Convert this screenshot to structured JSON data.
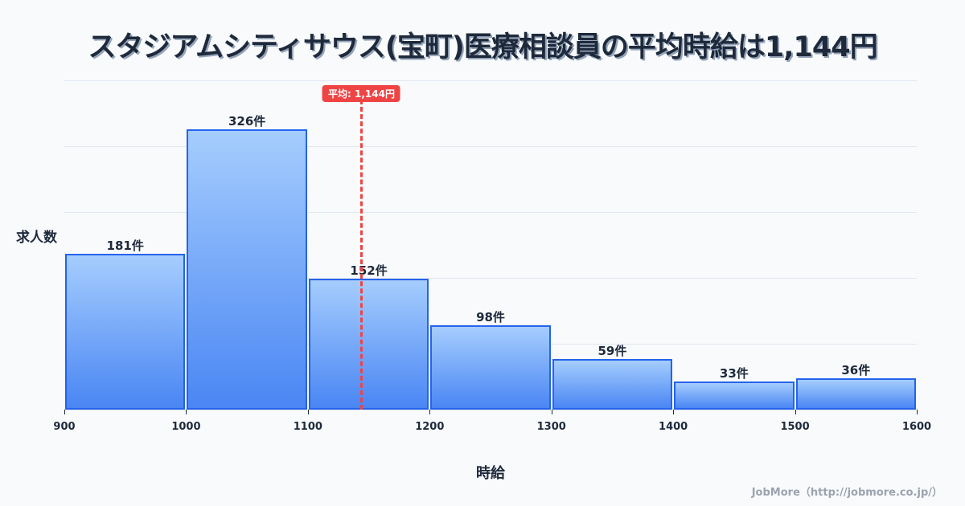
{
  "title": "スタジアムシティサウス(宝町)医療相談員の平均時給は1,144円",
  "mean_badge": "平均: 1,144円",
  "ylabel": "求人数",
  "xlabel": "時給",
  "credit": "JobMore（http://jobmore.co.jp/）",
  "colors": {
    "bar_border": "#2563eb",
    "bar_top": "#a5cdfd",
    "bar_bottom": "#4a86f4",
    "mean_line": "#ef4444",
    "text": "#1e293b"
  },
  "chart_data": {
    "type": "bar",
    "title": "スタジアムシティサウス(宝町)医療相談員の平均時給は1,144円",
    "xlabel": "時給",
    "ylabel": "求人数",
    "categories": [
      "900-1000",
      "1000-1100",
      "1100-1200",
      "1200-1300",
      "1300-1400",
      "1400-1500",
      "1500-1600"
    ],
    "bin_edges": [
      900,
      1000,
      1100,
      1200,
      1300,
      1400,
      1500,
      1600
    ],
    "values": [
      181,
      326,
      152,
      98,
      59,
      33,
      36
    ],
    "value_labels": [
      "181件",
      "326件",
      "152件",
      "98件",
      "59件",
      "33件",
      "36件"
    ],
    "x_ticks": [
      "900",
      "1000",
      "1100",
      "1200",
      "1300",
      "1400",
      "1500",
      "1600"
    ],
    "xlim": [
      900,
      1600
    ],
    "ylim": [
      0,
      383
    ],
    "grid": true,
    "annotations": [
      {
        "type": "vline",
        "x": 1144,
        "label": "平均: 1,144円",
        "style": "dashed",
        "color": "#ef4444"
      }
    ]
  }
}
